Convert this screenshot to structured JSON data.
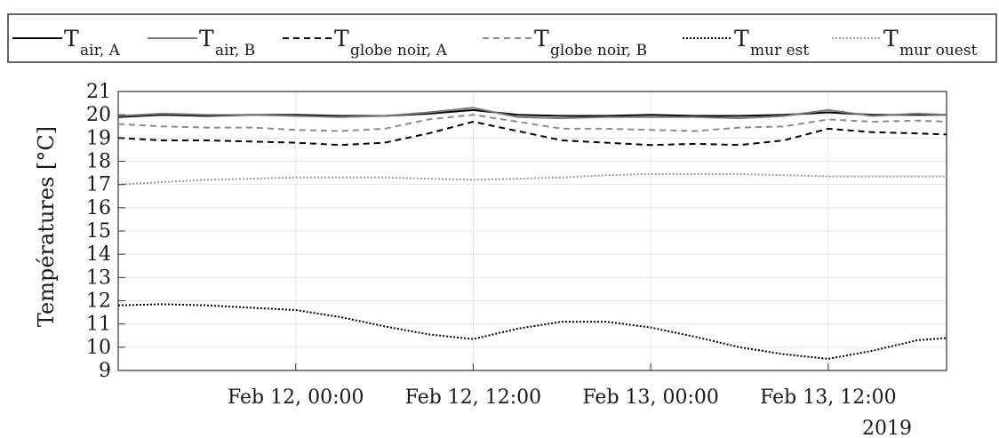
{
  "chart_data": {
    "type": "line",
    "title": "",
    "xlabel": "",
    "ylabel": "Températures [°C]",
    "ylim": [
      9,
      21
    ],
    "yticks": [
      9,
      10,
      11,
      12,
      13,
      14,
      15,
      16,
      17,
      18,
      19,
      20,
      21
    ],
    "xlim": [
      "2019-02-11T12:00",
      "2019-02-13T20:00"
    ],
    "xticks": [
      {
        "value": "2019-02-12T00:00",
        "label": "Feb 12, 00:00"
      },
      {
        "value": "2019-02-12T12:00",
        "label": "Feb 12, 12:00"
      },
      {
        "value": "2019-02-13T00:00",
        "label": "Feb 13, 00:00"
      },
      {
        "value": "2019-02-13T12:00",
        "label": "Feb 13, 12:00"
      }
    ],
    "x_secondary_label": "2019",
    "grid": true,
    "legend_position": "top",
    "series": [
      {
        "name": "T",
        "subscript": "air, A",
        "color": "#000000",
        "dash": "solid",
        "width": 2,
        "x": [
          "2019-02-11T12:00",
          "2019-02-11T15:00",
          "2019-02-11T18:00",
          "2019-02-11T21:00",
          "2019-02-12T00:00",
          "2019-02-12T03:00",
          "2019-02-12T06:00",
          "2019-02-12T09:00",
          "2019-02-12T12:00",
          "2019-02-12T15:00",
          "2019-02-12T18:00",
          "2019-02-12T21:00",
          "2019-02-13T00:00",
          "2019-02-13T03:00",
          "2019-02-13T06:00",
          "2019-02-13T09:00",
          "2019-02-13T12:00",
          "2019-02-13T15:00",
          "2019-02-13T18:00",
          "2019-02-13T20:00"
        ],
        "y": [
          19.9,
          20.0,
          19.95,
          20.0,
          20.0,
          19.95,
          19.95,
          20.05,
          20.2,
          20.0,
          19.95,
          19.95,
          20.0,
          19.95,
          19.95,
          20.0,
          20.1,
          20.0,
          20.0,
          20.0
        ]
      },
      {
        "name": "T",
        "subscript": "air, B",
        "color": "#7a7a7a",
        "dash": "solid",
        "width": 2,
        "x": [
          "2019-02-11T12:00",
          "2019-02-11T15:00",
          "2019-02-11T18:00",
          "2019-02-11T21:00",
          "2019-02-12T00:00",
          "2019-02-12T03:00",
          "2019-02-12T06:00",
          "2019-02-12T09:00",
          "2019-02-12T12:00",
          "2019-02-12T15:00",
          "2019-02-12T18:00",
          "2019-02-12T21:00",
          "2019-02-13T00:00",
          "2019-02-13T03:00",
          "2019-02-13T06:00",
          "2019-02-13T09:00",
          "2019-02-13T12:00",
          "2019-02-13T15:00",
          "2019-02-13T18:00",
          "2019-02-13T20:00"
        ],
        "y": [
          19.95,
          20.05,
          20.0,
          20.0,
          19.95,
          19.9,
          19.95,
          20.1,
          20.3,
          19.9,
          19.85,
          19.9,
          19.9,
          19.9,
          19.85,
          19.95,
          20.2,
          19.95,
          20.05,
          20.0
        ]
      },
      {
        "name": "T",
        "subscript": "globe noir, A",
        "color": "#000000",
        "dash": "dashed",
        "width": 2,
        "x": [
          "2019-02-11T12:00",
          "2019-02-11T15:00",
          "2019-02-11T18:00",
          "2019-02-11T21:00",
          "2019-02-12T00:00",
          "2019-02-12T03:00",
          "2019-02-12T06:00",
          "2019-02-12T09:00",
          "2019-02-12T12:00",
          "2019-02-12T13:30",
          "2019-02-12T15:00",
          "2019-02-12T18:00",
          "2019-02-12T21:00",
          "2019-02-13T00:00",
          "2019-02-13T03:00",
          "2019-02-13T06:00",
          "2019-02-13T09:00",
          "2019-02-13T12:00",
          "2019-02-13T15:00",
          "2019-02-13T18:00",
          "2019-02-13T20:00"
        ],
        "y": [
          19.0,
          18.9,
          18.9,
          18.85,
          18.8,
          18.7,
          18.8,
          19.2,
          19.7,
          19.5,
          19.3,
          18.9,
          18.8,
          18.7,
          18.75,
          18.7,
          18.9,
          19.4,
          19.25,
          19.2,
          19.15
        ]
      },
      {
        "name": "T",
        "subscript": "globe noir, B",
        "color": "#8c8c8c",
        "dash": "dashed",
        "width": 2,
        "x": [
          "2019-02-11T12:00",
          "2019-02-11T15:00",
          "2019-02-11T18:00",
          "2019-02-11T21:00",
          "2019-02-12T00:00",
          "2019-02-12T03:00",
          "2019-02-12T06:00",
          "2019-02-12T09:00",
          "2019-02-12T12:00",
          "2019-02-12T15:00",
          "2019-02-12T18:00",
          "2019-02-12T21:00",
          "2019-02-13T00:00",
          "2019-02-13T03:00",
          "2019-02-13T06:00",
          "2019-02-13T09:00",
          "2019-02-13T12:00",
          "2019-02-13T15:00",
          "2019-02-13T18:00",
          "2019-02-13T20:00"
        ],
        "y": [
          19.6,
          19.5,
          19.45,
          19.45,
          19.35,
          19.3,
          19.4,
          19.8,
          20.0,
          19.7,
          19.4,
          19.4,
          19.35,
          19.3,
          19.45,
          19.5,
          19.8,
          19.7,
          19.75,
          19.7
        ]
      },
      {
        "name": "T",
        "subscript": "mur est",
        "color": "#000000",
        "dash": "dotted",
        "width": 2,
        "x": [
          "2019-02-11T12:00",
          "2019-02-11T15:00",
          "2019-02-11T18:00",
          "2019-02-11T21:00",
          "2019-02-12T00:00",
          "2019-02-12T03:00",
          "2019-02-12T06:00",
          "2019-02-12T09:00",
          "2019-02-12T12:00",
          "2019-02-12T15:00",
          "2019-02-12T18:00",
          "2019-02-12T21:00",
          "2019-02-13T00:00",
          "2019-02-13T03:00",
          "2019-02-13T06:00",
          "2019-02-13T09:00",
          "2019-02-13T12:00",
          "2019-02-13T15:00",
          "2019-02-13T18:00",
          "2019-02-13T20:00"
        ],
        "y": [
          11.8,
          11.85,
          11.8,
          11.7,
          11.6,
          11.3,
          10.9,
          10.55,
          10.35,
          10.8,
          11.1,
          11.1,
          10.85,
          10.45,
          10.0,
          9.7,
          9.5,
          9.85,
          10.3,
          10.4
        ]
      },
      {
        "name": "T",
        "subscript": "mur ouest",
        "color": "#9a9a9a",
        "dash": "dotted",
        "width": 2,
        "x": [
          "2019-02-11T12:00",
          "2019-02-11T15:00",
          "2019-02-11T18:00",
          "2019-02-11T21:00",
          "2019-02-12T00:00",
          "2019-02-12T03:00",
          "2019-02-12T06:00",
          "2019-02-12T09:00",
          "2019-02-12T12:00",
          "2019-02-12T15:00",
          "2019-02-12T18:00",
          "2019-02-12T21:00",
          "2019-02-13T00:00",
          "2019-02-13T03:00",
          "2019-02-13T06:00",
          "2019-02-13T09:00",
          "2019-02-13T12:00",
          "2019-02-13T15:00",
          "2019-02-13T18:00",
          "2019-02-13T20:00"
        ],
        "y": [
          17.0,
          17.1,
          17.2,
          17.25,
          17.3,
          17.3,
          17.3,
          17.25,
          17.2,
          17.25,
          17.3,
          17.4,
          17.45,
          17.45,
          17.45,
          17.4,
          17.35,
          17.35,
          17.35,
          17.35
        ]
      }
    ]
  }
}
